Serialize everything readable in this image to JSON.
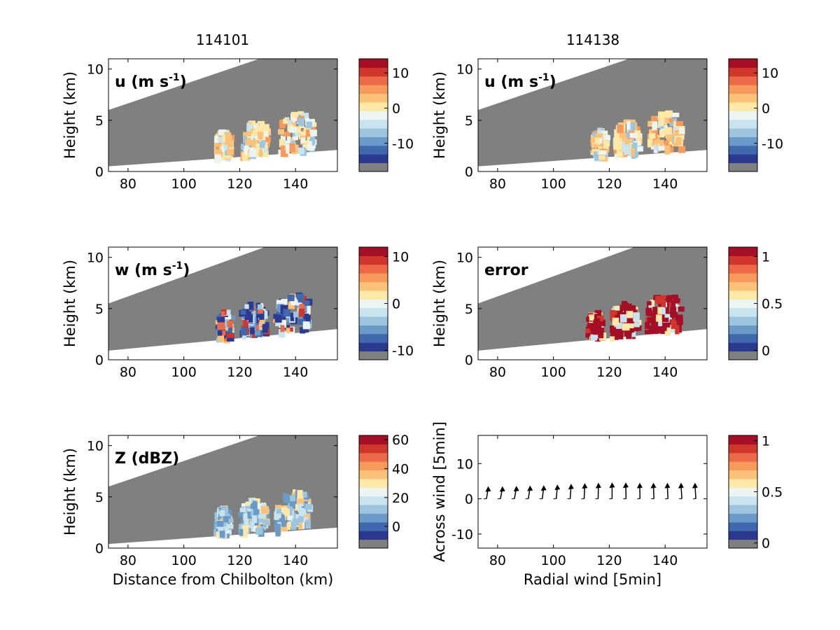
{
  "figure": {
    "titles": [
      "114101",
      "114138"
    ],
    "colormap": [
      "#808080",
      "#2b3990",
      "#3f68ad",
      "#6a9bc8",
      "#9dc5df",
      "#c9e3ef",
      "#ecf5f2",
      "#fee9a8",
      "#fdc27a",
      "#f99a5d",
      "#ec6a48",
      "#d1362d",
      "#a50f26"
    ],
    "mask_color": "#808080"
  },
  "chart_data": [
    {
      "id": "u-114101",
      "type": "heatmap",
      "column": 0,
      "row": 0,
      "annotation": "u (m s",
      "annotation_sup": "-1",
      "annotation_close": ")",
      "xlabel": "",
      "ylabel": "Height (km)",
      "xlim": [
        73,
        155
      ],
      "ylim": [
        0,
        11
      ],
      "xticks": [
        80,
        100,
        120,
        140
      ],
      "yticks": [
        0,
        5,
        10
      ],
      "beam_lower": [
        [
          73,
          0.5
        ],
        [
          155,
          2.1
        ]
      ],
      "beam_upper": [
        [
          73,
          6.0
        ],
        [
          127,
          11
        ]
      ],
      "colorbar": {
        "ticks": [
          10,
          0,
          -10
        ],
        "range": [
          -18,
          14
        ]
      },
      "echo_x_range": [
        108,
        152
      ]
    },
    {
      "id": "u-114138",
      "type": "heatmap",
      "column": 1,
      "row": 0,
      "annotation": "u (m s",
      "annotation_sup": "-1",
      "annotation_close": ")",
      "xlabel": "",
      "ylabel": "Height (km)",
      "xlim": [
        73,
        155
      ],
      "ylim": [
        0,
        11
      ],
      "xticks": [
        80,
        100,
        120,
        140
      ],
      "yticks": [
        0,
        5,
        10
      ],
      "beam_lower": [
        [
          73,
          0.5
        ],
        [
          155,
          2.1
        ]
      ],
      "beam_upper": [
        [
          73,
          6.0
        ],
        [
          127,
          11
        ]
      ],
      "colorbar": {
        "ticks": [
          10,
          0,
          -10
        ],
        "range": [
          -18,
          14
        ]
      },
      "echo_x_range": [
        111,
        150
      ]
    },
    {
      "id": "w-114101",
      "type": "heatmap",
      "column": 0,
      "row": 1,
      "annotation": "w (m s",
      "annotation_sup": "-1",
      "annotation_close": ")",
      "xlabel": "",
      "ylabel": "Height (km)",
      "xlim": [
        73,
        155
      ],
      "ylim": [
        0,
        11
      ],
      "xticks": [
        80,
        100,
        120,
        140
      ],
      "yticks": [
        0,
        5,
        10
      ],
      "beam_lower": [
        [
          73,
          0.9
        ],
        [
          155,
          3.0
        ]
      ],
      "beam_upper": [
        [
          73,
          5.5
        ],
        [
          129,
          11
        ]
      ],
      "colorbar": {
        "ticks": [
          10,
          0,
          -10
        ],
        "range": [
          -12,
          12
        ]
      },
      "echo_x_range": [
        109,
        149
      ]
    },
    {
      "id": "error-114138",
      "type": "heatmap",
      "column": 1,
      "row": 1,
      "annotation": "error",
      "annotation_sup": "",
      "annotation_close": "",
      "xlabel": "",
      "ylabel": "Height (km)",
      "xlim": [
        73,
        155
      ],
      "ylim": [
        0,
        11
      ],
      "xticks": [
        80,
        100,
        120,
        140
      ],
      "yticks": [
        0,
        5,
        10
      ],
      "beam_lower": [
        [
          73,
          0.9
        ],
        [
          155,
          3.0
        ]
      ],
      "beam_upper": [
        [
          73,
          5.5
        ],
        [
          129,
          11
        ]
      ],
      "colorbar": {
        "ticks": [
          1,
          0.5,
          0
        ],
        "range": [
          -0.1,
          1.1
        ]
      },
      "echo_x_range": [
        109,
        150
      ]
    },
    {
      "id": "Z-114101",
      "type": "heatmap",
      "column": 0,
      "row": 2,
      "annotation": "Z (dBZ)",
      "annotation_sup": "",
      "annotation_close": "",
      "xlabel": "Distance from Chilbolton (km)",
      "ylabel": "Height (km)",
      "xlim": [
        73,
        155
      ],
      "ylim": [
        0,
        11
      ],
      "xticks": [
        80,
        100,
        120,
        140
      ],
      "yticks": [
        0,
        5,
        10
      ],
      "beam_lower": [
        [
          73,
          0.4
        ],
        [
          155,
          2.0
        ]
      ],
      "beam_upper": [
        [
          73,
          6.0
        ],
        [
          127,
          11
        ]
      ],
      "colorbar": {
        "ticks": [
          60,
          40,
          20,
          0
        ],
        "range": [
          -15,
          63
        ]
      },
      "echo_x_range": [
        108,
        150
      ]
    },
    {
      "id": "wind-vectors",
      "type": "scatter",
      "column": 1,
      "row": 2,
      "annotation": "",
      "annotation_sup": "",
      "annotation_close": "",
      "xlabel": "Radial wind [5min]",
      "ylabel": "Across wind [5min]",
      "xlim": [
        73,
        155
      ],
      "ylim": [
        -14,
        18
      ],
      "xticks": [
        80,
        100,
        120,
        140
      ],
      "yticks": [
        -10,
        0,
        10
      ],
      "colorbar": {
        "ticks": [
          1,
          0.5,
          0
        ],
        "range": [
          -0.05,
          1.05
        ]
      },
      "vectors": [
        {
          "x": 76,
          "y": 0,
          "u": 0.6,
          "v": 3.0
        },
        {
          "x": 81,
          "y": 0,
          "u": 0.7,
          "v": 3.0
        },
        {
          "x": 86,
          "y": 0,
          "u": 0.7,
          "v": 3.1
        },
        {
          "x": 91,
          "y": 0,
          "u": 0.6,
          "v": 3.2
        },
        {
          "x": 96,
          "y": 0,
          "u": 0.5,
          "v": 3.3
        },
        {
          "x": 101,
          "y": 0,
          "u": 0.4,
          "v": 3.5
        },
        {
          "x": 106,
          "y": 0,
          "u": 0.3,
          "v": 3.7
        },
        {
          "x": 111,
          "y": 0,
          "u": 0.2,
          "v": 3.9
        },
        {
          "x": 116,
          "y": 0,
          "u": 0.1,
          "v": 4.0
        },
        {
          "x": 121,
          "y": 0,
          "u": 0.0,
          "v": 4.1
        },
        {
          "x": 126,
          "y": 0,
          "u": -0.1,
          "v": 4.1
        },
        {
          "x": 131,
          "y": 0,
          "u": -0.1,
          "v": 4.0
        },
        {
          "x": 136,
          "y": 0,
          "u": -0.2,
          "v": 4.0
        },
        {
          "x": 141,
          "y": 0,
          "u": -0.2,
          "v": 4.0
        },
        {
          "x": 146,
          "y": 0,
          "u": -0.3,
          "v": 4.0
        },
        {
          "x": 151,
          "y": 0,
          "u": -0.3,
          "v": 4.0
        }
      ]
    }
  ]
}
